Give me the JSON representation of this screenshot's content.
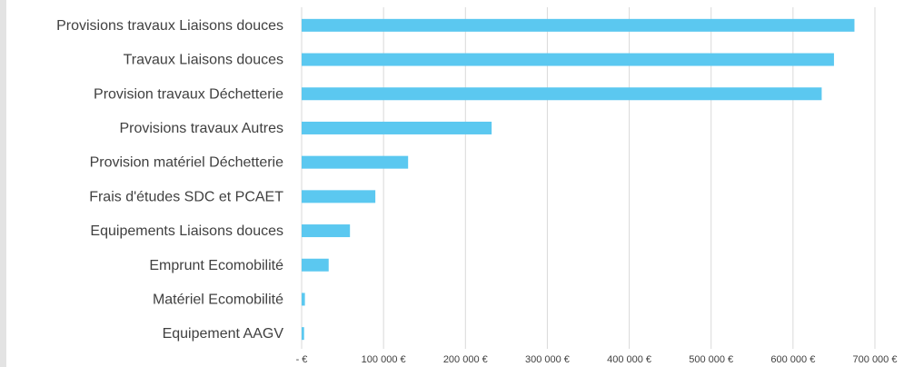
{
  "chart_data": {
    "type": "bar",
    "orientation": "horizontal",
    "categories": [
      "Provisions travaux Liaisons douces",
      "Travaux Liaisons douces",
      "Provision travaux Déchetterie",
      "Provisions travaux Autres",
      "Provision matériel Déchetterie",
      "Frais d'études SDC et PCAET",
      "Equipements Liaisons douces",
      "Emprunt Ecomobilité",
      "Matériel Ecomobilité",
      "Equipement AAGV"
    ],
    "values": [
      675000,
      650000,
      635000,
      232000,
      130000,
      90000,
      59000,
      33000,
      4000,
      3000
    ],
    "xlim": [
      0,
      700000
    ],
    "xticks": [
      {
        "value": 0,
        "label": "-  €"
      },
      {
        "value": 100000,
        "label": "100 000 €"
      },
      {
        "value": 200000,
        "label": "200 000 €"
      },
      {
        "value": 300000,
        "label": "300 000 €"
      },
      {
        "value": 400000,
        "label": "400 000 €"
      },
      {
        "value": 500000,
        "label": "500 000 €"
      },
      {
        "value": 600000,
        "label": "600 000 €"
      },
      {
        "value": 700000,
        "label": "700 000 €"
      }
    ],
    "grid": true,
    "bar_color": "#5bc8f0",
    "title": "",
    "xlabel": "",
    "ylabel": ""
  }
}
